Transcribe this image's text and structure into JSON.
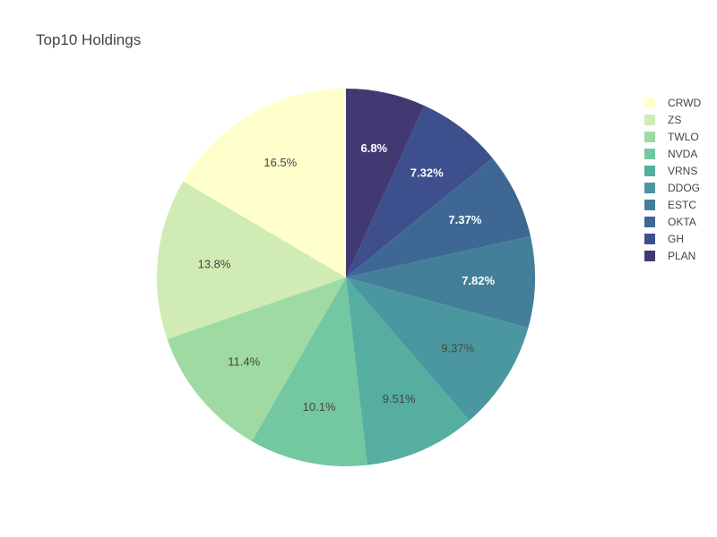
{
  "chart_data": {
    "type": "pie",
    "title": "Top10 Holdings",
    "labels": [
      "CRWD",
      "ZS",
      "TWLO",
      "NVDA",
      "VRNS",
      "DDOG",
      "ESTC",
      "OKTA",
      "GH",
      "PLAN"
    ],
    "values": [
      16.5,
      13.8,
      11.4,
      10.1,
      9.51,
      9.37,
      7.82,
      7.37,
      7.32,
      6.8
    ],
    "text_labels": [
      "16.5%",
      "13.8%",
      "11.4%",
      "10.1%",
      "9.51%",
      "9.37%",
      "7.82%",
      "7.37%",
      "7.32%",
      "6.8%"
    ],
    "colors": [
      "#ffffcc",
      "#d0ecb4",
      "#9edaa1",
      "#73c8a1",
      "#55ae9f",
      "#4b979f",
      "#447f9a",
      "#3e6893",
      "#3e4f8e",
      "#413a72"
    ],
    "label_colors": [
      "#444444",
      "#444444",
      "#444444",
      "#444444",
      "#444444",
      "#444444",
      "#ffffff",
      "#ffffff",
      "#ffffff",
      "#ffffff"
    ],
    "direction": "counterclockwise",
    "start_angle": 90,
    "legend_position": "right",
    "legend_order": [
      "CRWD",
      "ZS",
      "TWLO",
      "NVDA",
      "VRNS",
      "DDOG",
      "ESTC",
      "OKTA",
      "GH",
      "PLAN"
    ]
  }
}
